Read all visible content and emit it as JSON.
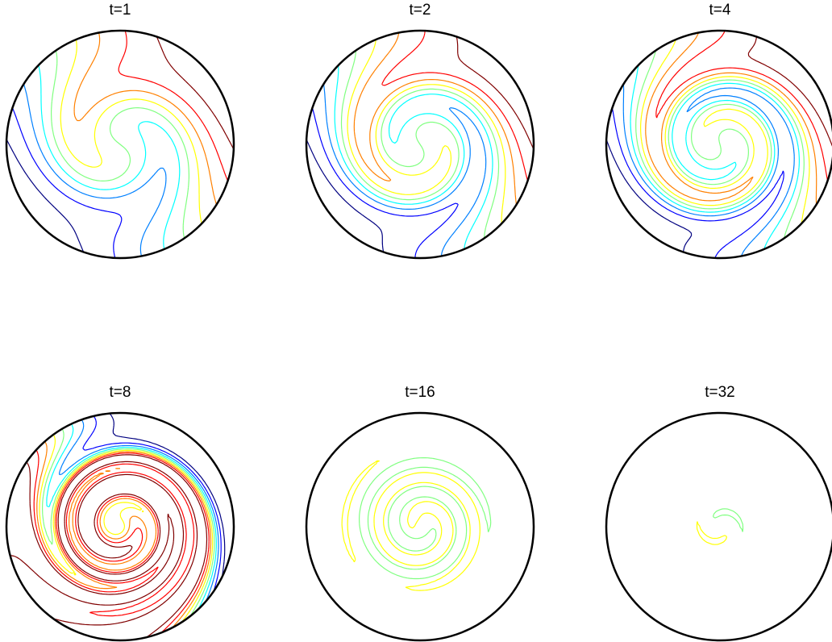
{
  "chart_data": {
    "type": "contour",
    "colormap": "jet",
    "panels": [
      {
        "title": "t=1",
        "time": 1,
        "contour_levels": 9
      },
      {
        "title": "t=2",
        "time": 2,
        "contour_levels": 9
      },
      {
        "title": "t=4",
        "time": 4,
        "contour_levels": 9
      },
      {
        "title": "t=8",
        "time": 8,
        "contour_levels": 9
      },
      {
        "title": "t=16",
        "time": 16,
        "contour_levels": 9
      },
      {
        "title": "t=32",
        "time": 32,
        "contour_levels": 9
      }
    ],
    "grid": false,
    "legend": "none"
  }
}
